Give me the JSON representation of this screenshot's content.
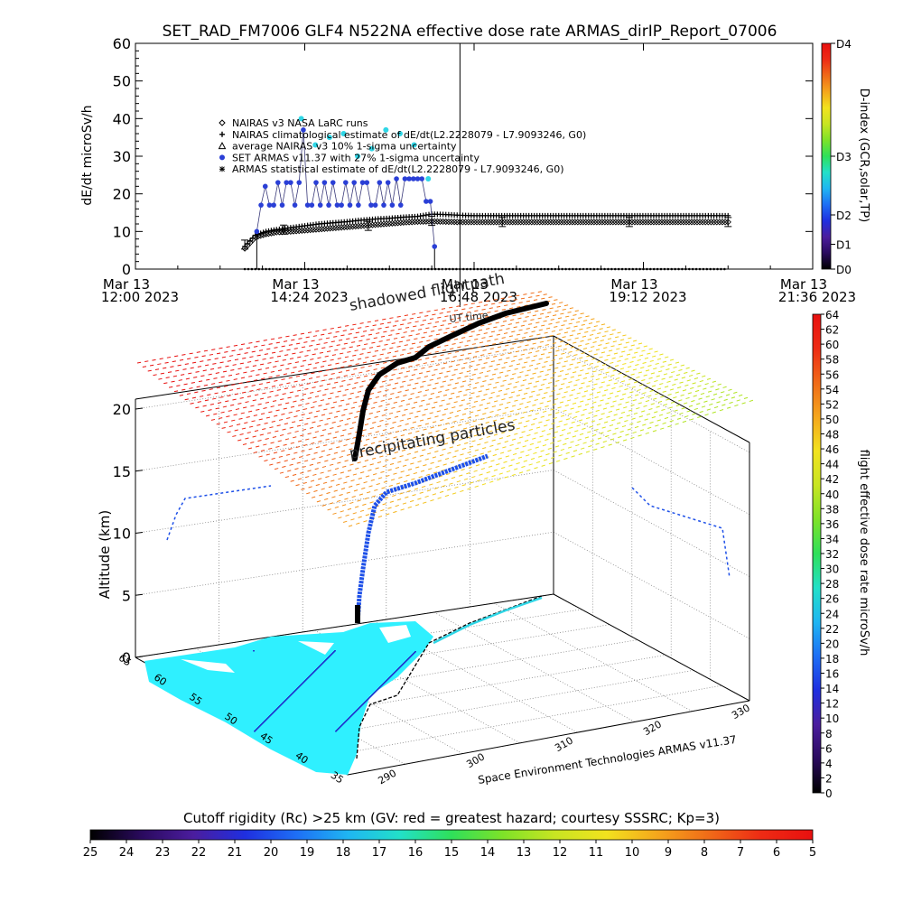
{
  "title": "SET_RAD_FM7006  GLF4 N522NA effective dose rate ARMAS_dirIP_Report_07006",
  "colors": {
    "rainbow": [
      "#000000",
      "#2a0a5e",
      "#4b1d9e",
      "#1f2fe0",
      "#1e6ff5",
      "#1fb6f2",
      "#22e0c8",
      "#2fe05a",
      "#7ee228",
      "#c8e522",
      "#f2e21e",
      "#f5a61c",
      "#f06a18",
      "#ee2b14",
      "#e8100f"
    ],
    "blue_point": "#2a3fd6",
    "cyan_point": "#2fd6e6",
    "map_cyan": "#2ff0ff"
  },
  "chart_data": [
    {
      "type": "scatter",
      "ylabel": "dE/dt microSv/h",
      "ylim": [
        0,
        60
      ],
      "yticks": [
        0,
        10,
        20,
        30,
        40,
        50,
        60
      ],
      "xlim_hours": [
        12.0,
        21.6
      ],
      "xtick_hours": [
        12.0,
        14.4,
        16.8,
        19.2,
        21.6
      ],
      "xtick_labels": [
        {
          "line1": "Mar 13",
          "line2": "12:00 2023"
        },
        {
          "line1": "Mar 13",
          "line2": "14:24 2023"
        },
        {
          "line1": "Mar 13",
          "line2": "16:48 2023"
        },
        {
          "line1": "Mar 13",
          "line2": "19:12 2023"
        },
        {
          "line1": "Mar 13",
          "line2": "21:36 2023"
        }
      ],
      "right_axis": {
        "label": "D-index (GCR,solar,TP)",
        "ticks": [
          {
            "label": "D4",
            "frac": 1.0
          },
          {
            "label": "D3",
            "frac": 0.5
          },
          {
            "label": "D2",
            "frac": 0.24
          },
          {
            "label": "D1",
            "frac": 0.11
          },
          {
            "label": "D0",
            "frac": 0.0
          }
        ]
      },
      "legend": [
        {
          "symbol": "diamond",
          "text": "NAIRAS v3 NASA LaRC runs"
        },
        {
          "symbol": "plus",
          "text": "NAIRAS climatological estimate of dE/dt(L2.2228079 - L7.9093246, G0)"
        },
        {
          "symbol": "triangle",
          "text": "average NAIRAS v3 10% 1-sigma uncertainty"
        },
        {
          "symbol": "dot",
          "text": "SET ARMAS v11.37 with 27% 1-sigma uncertainty"
        },
        {
          "symbol": "asterisk",
          "text": "ARMAS statistical estimate of dE/dt(L2.2228079 - L7.9093246, G0)"
        }
      ],
      "vertical_marker_hour": 16.6,
      "series": [
        {
          "symbol": "plus",
          "x": [
            13.55,
            13.7,
            13.85,
            14.0,
            14.2,
            14.4,
            14.6,
            14.8,
            15.0,
            15.2,
            15.4,
            15.6,
            15.8,
            16.0,
            16.2,
            16.4,
            16.6,
            16.8,
            17.0,
            17.5,
            18.0,
            18.5,
            19.0,
            19.5,
            20.0,
            20.4
          ],
          "y": [
            6,
            9,
            10,
            10.5,
            11,
            11.5,
            12,
            12.3,
            12.6,
            13,
            13.3,
            13.5,
            13.8,
            14,
            14.6,
            14.5,
            14.3,
            14.2,
            14.2,
            14.2,
            14.2,
            14.2,
            14.2,
            14.2,
            14.2,
            14.2
          ]
        },
        {
          "symbol": "diamond",
          "x": [
            13.55,
            13.7,
            13.85,
            14.0,
            14.2,
            14.4,
            14.6,
            14.8,
            15.0,
            15.2,
            15.4,
            15.6,
            15.8,
            16.0,
            16.2,
            16.4,
            16.6,
            16.8,
            17.0,
            17.5,
            18.0,
            18.5,
            19.0,
            19.5,
            20.0,
            20.4
          ],
          "y": [
            5.5,
            8.5,
            9.3,
            9.8,
            10,
            10.3,
            10.6,
            10.9,
            11.2,
            11.5,
            11.8,
            12.1,
            12.4,
            12.6,
            12.7,
            12.6,
            12.5,
            12.5,
            12.5,
            12.5,
            12.5,
            12.5,
            12.5,
            12.5,
            12.5,
            12.5
          ]
        },
        {
          "symbol": "dot",
          "x": [
            13.72,
            13.78,
            13.84,
            13.9,
            13.96,
            14.02,
            14.08,
            14.14,
            14.2,
            14.26,
            14.32,
            14.38,
            14.44,
            14.5,
            14.56,
            14.62,
            14.68,
            14.74,
            14.8,
            14.86,
            14.92,
            14.98,
            15.04,
            15.1,
            15.16,
            15.22,
            15.28,
            15.34,
            15.4,
            15.46,
            15.52,
            15.58,
            15.64,
            15.7,
            15.76,
            15.82,
            15.88,
            15.94,
            16.0,
            16.06,
            16.12,
            16.18,
            16.24
          ],
          "y": [
            10,
            17,
            22,
            17,
            17,
            23,
            17,
            23,
            23,
            17,
            23,
            37,
            17,
            17,
            23,
            17,
            23,
            17,
            23,
            17,
            17,
            23,
            17,
            23,
            17,
            23,
            23,
            17,
            17,
            23,
            17,
            23,
            17,
            24,
            17,
            24,
            24,
            24,
            24,
            24,
            18,
            18,
            6
          ]
        },
        {
          "symbol": "dot_cyan",
          "x": [
            14.35,
            14.55,
            14.75,
            14.95,
            15.15,
            15.35,
            15.55,
            15.75,
            15.95,
            16.15
          ],
          "y": [
            40,
            33,
            35,
            36,
            30,
            32,
            37,
            36,
            33,
            24
          ]
        }
      ],
      "error_bars_x": [
        13.55,
        14.1,
        15.3,
        16.2,
        17.2,
        19.0,
        20.4
      ],
      "error_bars_y": [
        6.5,
        10.5,
        11.5,
        12.8,
        12.5,
        12.5,
        12.5
      ]
    },
    {
      "type": "3d-trajectory",
      "ylabel": "Altitude (km)",
      "zticks": [
        0,
        5,
        10,
        15,
        20
      ],
      "lat_ticks": [
        "35",
        "40",
        "45",
        "50",
        "55",
        "60",
        "65"
      ],
      "lon_ticks": [
        "290",
        "300",
        "310",
        "320",
        "330"
      ],
      "annotations": [
        "shadowed flightpath",
        "UT time",
        "precipitating particles",
        "Space Environment Technologies ARMAS v11.37"
      ],
      "right_colorbar": {
        "label": "flight effective dose rate microSv/h",
        "ticks": [
          "0",
          "2",
          "4",
          "6",
          "8",
          "10",
          "12",
          "14",
          "16",
          "18",
          "20",
          "22",
          "24",
          "26",
          "28",
          "30",
          "32",
          "34",
          "36",
          "38",
          "40",
          "42",
          "44",
          "46",
          "48",
          "50",
          "52",
          "54",
          "56",
          "58",
          "60",
          "62",
          "64"
        ]
      },
      "bottom_colorbar": {
        "label": "Cutoff rigidity (Rc) >25 km (GV: red = greatest hazard; courtesy SSSRC; Kp=3)",
        "ticks": [
          "25",
          "24",
          "23",
          "22",
          "21",
          "20",
          "19",
          "18",
          "17",
          "16",
          "15",
          "14",
          "13",
          "12",
          "11",
          "10",
          "9",
          "8",
          "7",
          "6",
          "5"
        ]
      }
    }
  ]
}
